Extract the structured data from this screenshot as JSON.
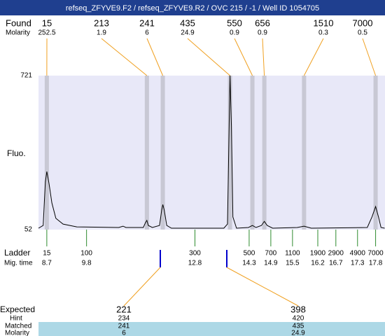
{
  "chart_data": {
    "type": "electropherogram",
    "title": "refseq_ZFYVE9.F2 / refseq_ZFYVE9.R2 / OVC 215 / -1 / Well ID 1054705",
    "y_label": "Fluo.",
    "xlim": [
      8.47,
      18.06
    ],
    "ylim": [
      52,
      721
    ],
    "yticks": [
      721,
      52
    ],
    "trace": {
      "color": "#000000",
      "x": [
        8.47,
        8.6,
        8.66,
        8.7,
        8.76,
        8.84,
        8.95,
        9.15,
        9.53,
        10.69,
        10.81,
        10.89,
        11.37,
        11.43,
        11.47,
        11.51,
        11.62,
        11.82,
        11.88,
        11.91,
        11.95,
        12.02,
        12.15,
        13.6,
        13.7,
        13.74,
        13.77,
        13.81,
        13.85,
        13.95,
        14.28,
        14.39,
        14.49,
        14.64,
        14.72,
        14.8,
        14.95,
        15.63,
        15.82,
        16.02,
        17.57,
        17.7,
        17.8,
        17.88,
        17.95,
        18.05
      ],
      "values": [
        58,
        70,
        259,
        304,
        253,
        168,
        101,
        76,
        64,
        61,
        67,
        61,
        61,
        82,
        92,
        70,
        61,
        70,
        137,
        161,
        137,
        70,
        58,
        58,
        76,
        441,
        721,
        502,
        107,
        58,
        61,
        70,
        61,
        70,
        88,
        70,
        58,
        61,
        67,
        58,
        61,
        107,
        152,
        107,
        61,
        58
      ]
    },
    "found": {
      "label": "Found",
      "molarity_label": "Molarity",
      "sizes": [
        15,
        213,
        241,
        435,
        550,
        656,
        1510,
        7000
      ],
      "molarity": [
        252.5,
        1.9,
        6,
        24.9,
        0.9,
        0.9,
        0.3,
        0.5
      ],
      "peak_times": [
        8.7,
        11.47,
        11.91,
        13.77,
        14.39,
        14.72,
        15.82,
        17.8
      ]
    },
    "ladder": {
      "label": "Ladder",
      "time_label": "Mig. time",
      "sizes": [
        15,
        100,
        300,
        500,
        700,
        1100,
        1900,
        2900,
        4900,
        7000
      ],
      "times": [
        8.7,
        9.8,
        12.8,
        14.3,
        14.9,
        15.5,
        16.2,
        16.7,
        17.3,
        17.8
      ]
    },
    "expected": {
      "label": "Expected",
      "hint_label": "Hint",
      "matched_label": "Matched",
      "molarity_label": "Molarity",
      "sizes": [
        221,
        398
      ],
      "hints": [
        234,
        420
      ],
      "matched": [
        241,
        435
      ],
      "molarity": [
        6,
        24.9
      ]
    }
  }
}
